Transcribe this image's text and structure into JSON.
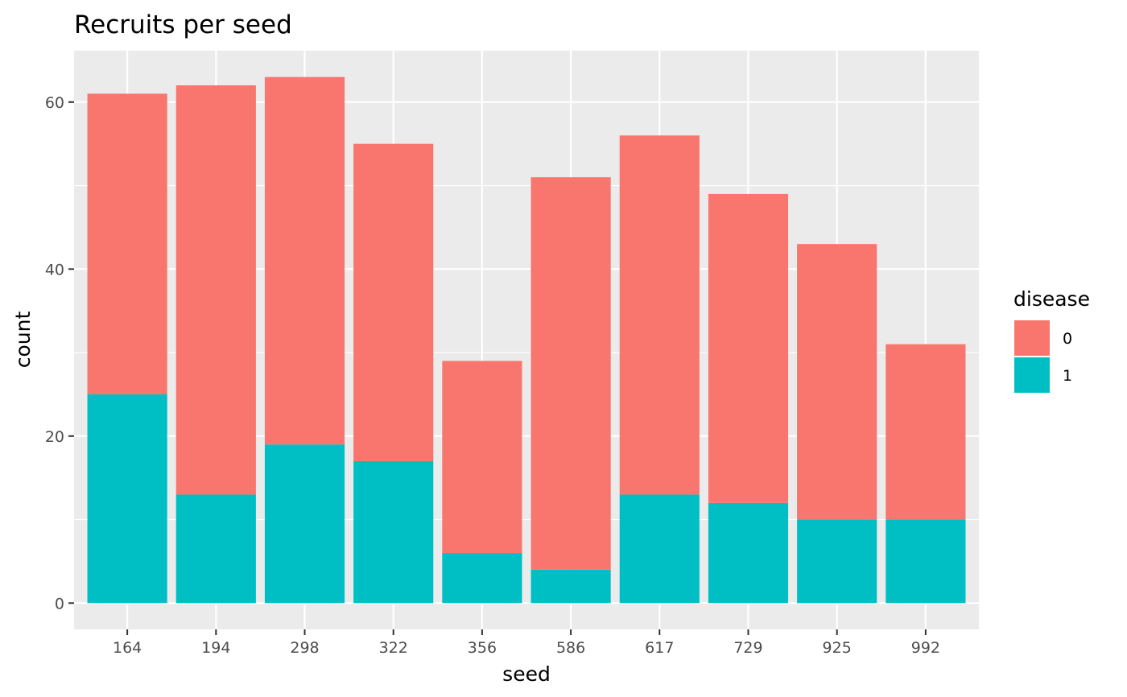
{
  "chart_data": {
    "type": "bar",
    "stacked": true,
    "title": "Recruits per seed",
    "xlabel": "seed",
    "ylabel": "count",
    "categories": [
      "164",
      "194",
      "298",
      "322",
      "356",
      "586",
      "617",
      "729",
      "925",
      "992"
    ],
    "series": [
      {
        "name": "0",
        "color": "#F8766D",
        "values": [
          36,
          49,
          44,
          38,
          23,
          47,
          43,
          37,
          33,
          21
        ]
      },
      {
        "name": "1",
        "color": "#00BFC4",
        "values": [
          25,
          13,
          19,
          17,
          6,
          4,
          13,
          12,
          10,
          10
        ]
      }
    ],
    "stack_order": [
      "1",
      "0"
    ],
    "ylim": [
      -3.15,
      66.15
    ],
    "yticks": [
      0,
      20,
      40,
      60
    ],
    "yticks_minor": [
      10,
      30,
      50
    ],
    "grid": true,
    "panel_background": "#EBEBEB",
    "legend": {
      "title": "disease",
      "position": "right"
    }
  }
}
